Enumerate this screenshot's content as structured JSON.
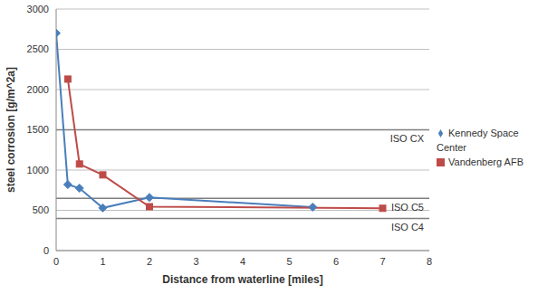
{
  "chart_data": {
    "type": "line",
    "x_label": "Distance from waterline [miles]",
    "y_label": "steel corrosion [g/m^2a]",
    "series": [
      {
        "name": "Kennedy Space Center",
        "color": "#4a7ebb",
        "marker": "diamond",
        "x": [
          0,
          0.25,
          0.5,
          1,
          2,
          5.5
        ],
        "values": [
          2700,
          820,
          775,
          530,
          660,
          540
        ]
      },
      {
        "name": "Vandenberg AFB",
        "color": "#be4b48",
        "marker": "square",
        "x": [
          0.25,
          0.5,
          1,
          2,
          7
        ],
        "values": [
          2130,
          1075,
          940,
          545,
          525
        ]
      }
    ],
    "xlim": [
      0,
      8
    ],
    "xticks": [
      0,
      1,
      2,
      3,
      4,
      5,
      6,
      7,
      8
    ],
    "ylim": [
      0,
      3000
    ],
    "yticks": [
      0,
      500,
      1000,
      1500,
      2000,
      2500,
      3000
    ],
    "grid": true,
    "legend": "right",
    "reference_lines": [
      {
        "value": 1500,
        "label": "ISO CX"
      },
      {
        "value": 650,
        "label": "ISO C5"
      },
      {
        "value": 400,
        "label": "ISO C4"
      }
    ]
  }
}
